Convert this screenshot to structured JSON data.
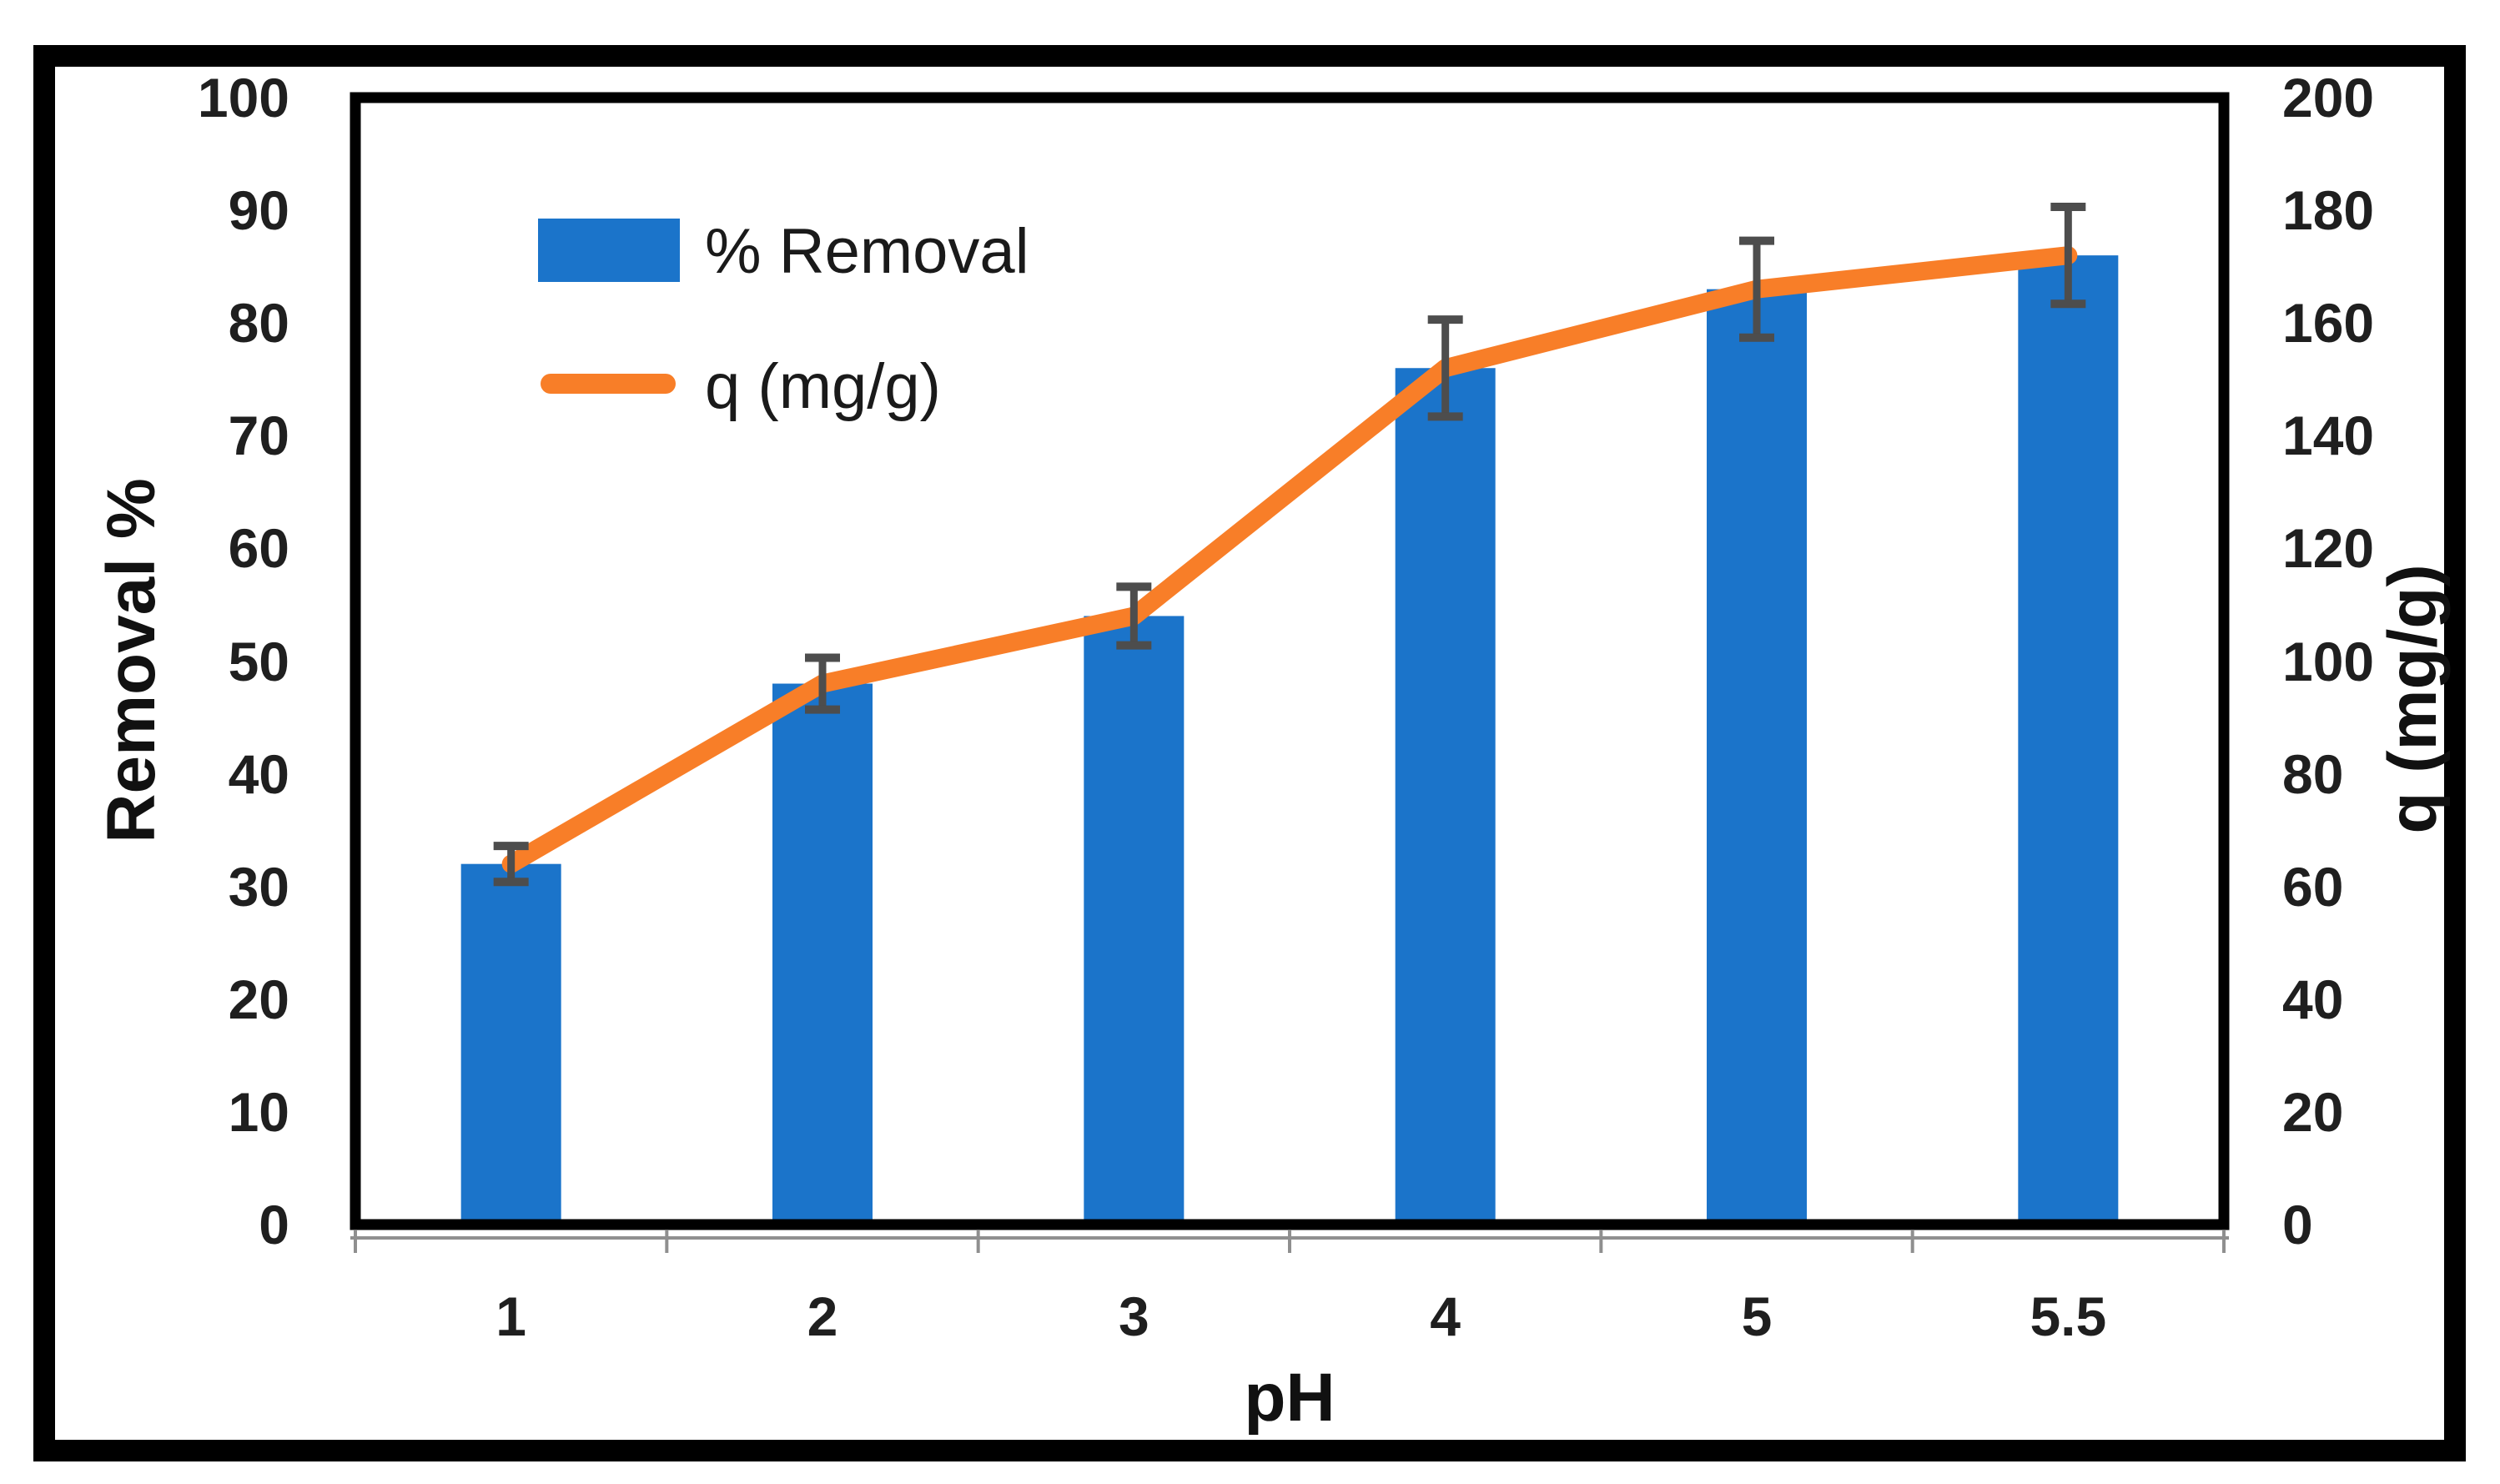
{
  "chart_data": {
    "type": "bar+line",
    "categories": [
      "1",
      "2",
      "3",
      "4",
      "5",
      "5.5"
    ],
    "x_axis": {
      "title": "pH"
    },
    "left_axis": {
      "title": "Removal %",
      "min": 0,
      "max": 100,
      "step": 10,
      "tick_labels": [
        "0",
        "10",
        "20",
        "30",
        "40",
        "50",
        "60",
        "70",
        "80",
        "90",
        "100"
      ]
    },
    "right_axis": {
      "title": "q (mg/g)",
      "min": 0,
      "max": 200,
      "step": 20,
      "tick_labels": [
        "0",
        "20",
        "40",
        "60",
        "80",
        "100",
        "120",
        "140",
        "160",
        "180",
        "200"
      ]
    },
    "series": [
      {
        "name": "% Removal",
        "type": "bar",
        "axis": "left",
        "color": "#1B74CA",
        "values": [
          32,
          48,
          54,
          76,
          83,
          86
        ],
        "error_bars_plus_minus": [
          1.6,
          2.3,
          2.6,
          4.3,
          4.3,
          4.3
        ],
        "error_bar_color": "#4D4D4D"
      },
      {
        "name": "q (mg/g)",
        "type": "line",
        "axis": "right",
        "color": "#F87E28",
        "values": [
          64,
          96,
          108,
          152,
          166,
          172
        ]
      }
    ],
    "legend": {
      "position": "inside-top-left",
      "items": [
        "% Removal",
        "q (mg/g)"
      ]
    },
    "grid": "off",
    "frame_color": "#000000",
    "minor_axis_line_color": "#8f8f8f",
    "tick_text_color": "#1f1f1f"
  }
}
